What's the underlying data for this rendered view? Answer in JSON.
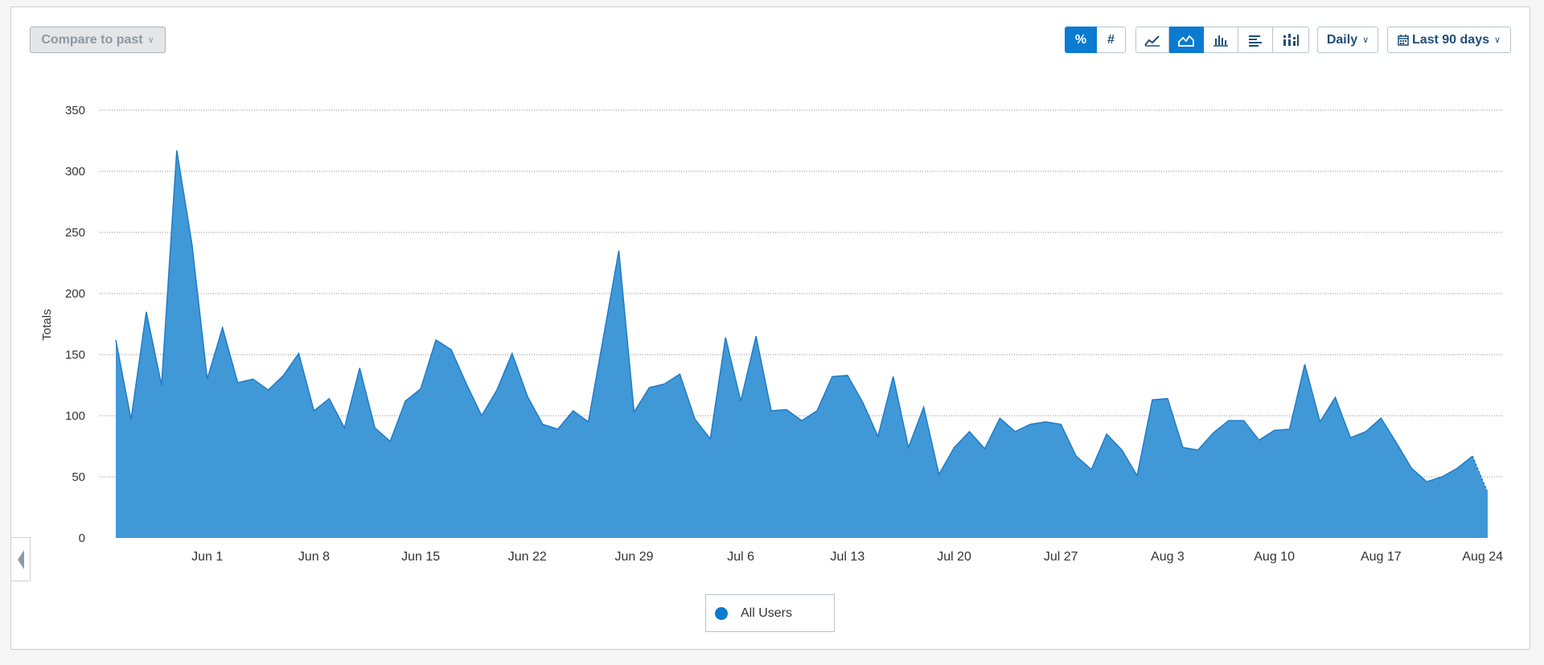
{
  "toolbar": {
    "compare_label": "Compare to past",
    "percent_label": "%",
    "number_label": "#",
    "interval_label": "Daily",
    "range_label": "Last 90 days",
    "chart_type_icons": [
      "line-chart-icon",
      "area-chart-icon",
      "bar-chart-icon",
      "horizontal-bar-icon",
      "stacked-bar-icon"
    ],
    "active_chart_type": "area-chart-icon",
    "active_unit": "%"
  },
  "legend": {
    "label": "All Users",
    "color": "#0b7ad1"
  },
  "colors": {
    "area_fill": "#4198d7",
    "area_stroke": "#1f7cc7",
    "accent": "#0b7ad1"
  },
  "chart_data": {
    "type": "area",
    "ylabel": "Totals",
    "xlabel": "",
    "ylim": [
      0,
      350
    ],
    "yticks": [
      0,
      50,
      100,
      150,
      200,
      250,
      300,
      350
    ],
    "xtick_labels": [
      "Jun 1",
      "Jun 8",
      "Jun 15",
      "Jun 22",
      "Jun 29",
      "Jul 6",
      "Jul 13",
      "Jul 20",
      "Jul 27",
      "Aug 3",
      "Aug 10",
      "Aug 17",
      "Aug 24"
    ],
    "x_start": "May 26",
    "grid": true,
    "legend_position": "bottom-center",
    "last_point_dashed": true,
    "series": [
      {
        "name": "All Users",
        "values": [
          162,
          97,
          185,
          125,
          317,
          240,
          130,
          172,
          127,
          130,
          121,
          133,
          151,
          104,
          114,
          90,
          139,
          90,
          79,
          112,
          122,
          162,
          154,
          126,
          100,
          121,
          151,
          116,
          93,
          89,
          104,
          95,
          165,
          235,
          103,
          123,
          126,
          134,
          97,
          81,
          164,
          112,
          165,
          104,
          105,
          96,
          104,
          132,
          133,
          111,
          83,
          132,
          74,
          107,
          52,
          74,
          87,
          73,
          98,
          87,
          93,
          95,
          93,
          67,
          56,
          85,
          72,
          51,
          113,
          114,
          74,
          72,
          86,
          96,
          96,
          80,
          88,
          89,
          142,
          95,
          115,
          82,
          87,
          98,
          78,
          57,
          46,
          50,
          57,
          67,
          37
        ]
      }
    ]
  }
}
